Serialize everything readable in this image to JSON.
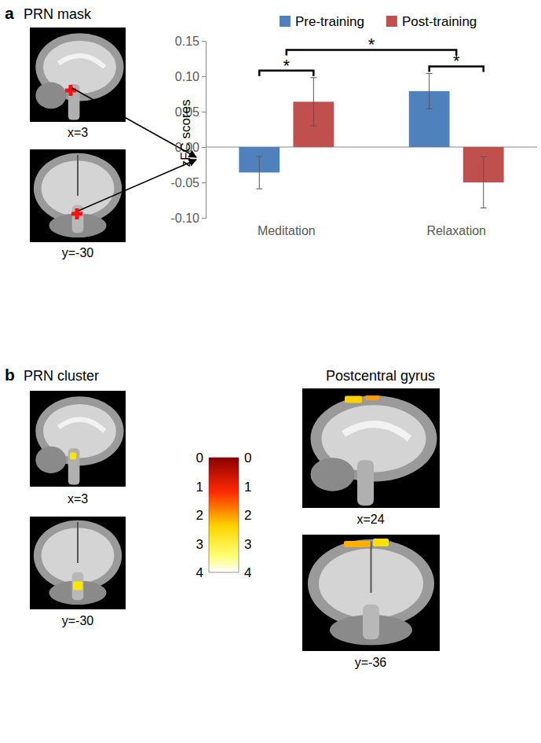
{
  "chart_data": {
    "type": "bar",
    "y_label": "zFC scores",
    "categories": [
      "Meditation",
      "Relaxation"
    ],
    "series": [
      {
        "name": "Pre-training",
        "color": "#4f81bd",
        "values": [
          -0.036,
          0.079
        ],
        "errors": [
          0.023,
          0.025
        ]
      },
      {
        "name": "Post-training",
        "color": "#c0504d",
        "values": [
          0.064,
          -0.05
        ],
        "errors": [
          0.034,
          0.036
        ]
      }
    ],
    "ylim": [
      -0.1,
      0.15
    ],
    "yticks": [
      {
        "value": -0.1,
        "label": "-0.10"
      },
      -0.05,
      {
        "value": 0,
        "label": "0.00"
      },
      0.05,
      {
        "value": 0.1,
        "label": "0.10"
      },
      0.15
    ],
    "legend": "top",
    "annotations": [
      {
        "text": "*",
        "span": [
          {
            "series": "Pre-training",
            "category": "Meditation"
          },
          {
            "series": "Post-training",
            "category": "Meditation"
          }
        ]
      },
      {
        "text": "*",
        "span": [
          {
            "series": "Pre-training",
            "category": "Relaxation"
          },
          {
            "series": "Post-training",
            "category": "Relaxation"
          }
        ]
      },
      {
        "text": "*",
        "span": [
          {
            "category": "Meditation"
          },
          {
            "category": "Relaxation"
          }
        ]
      }
    ]
  },
  "figure": {
    "panel_a": {
      "letter": "a",
      "title": "PRN mask",
      "slices": [
        "x=3",
        "y=-30"
      ]
    },
    "panel_b": {
      "letter": "b",
      "title": "PRN cluster",
      "slices": [
        "x=3",
        "y=-30"
      ],
      "region": "Postcentral gyrus",
      "region_slices": [
        "x=24",
        "y=-36"
      ],
      "colorbar": {
        "range": [
          0,
          4
        ],
        "ticks": [
          0,
          1,
          2,
          3,
          4
        ]
      }
    }
  }
}
